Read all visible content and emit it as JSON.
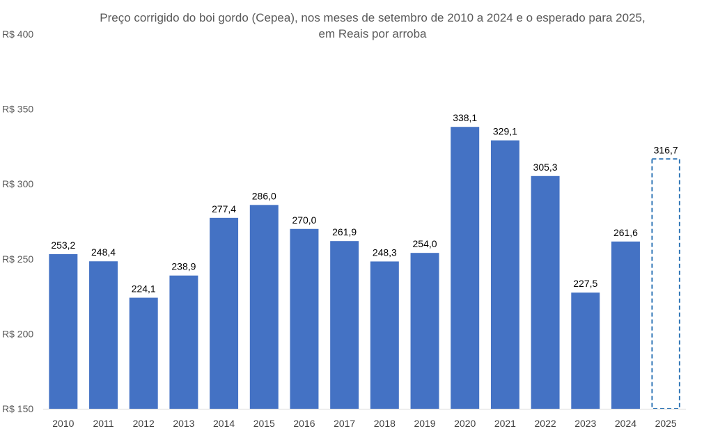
{
  "chart_data": {
    "type": "bar",
    "title_line1": "Preço corrigido do boi gordo (Cepea), nos meses de setembro de 2010 a 2024 e o esperado para 2025,",
    "title_line2": "em Reais por arroba",
    "categories": [
      "2010",
      "2011",
      "2012",
      "2013",
      "2014",
      "2015",
      "2016",
      "2017",
      "2018",
      "2019",
      "2020",
      "2021",
      "2022",
      "2023",
      "2024",
      "2025"
    ],
    "values": [
      253.2,
      248.4,
      224.1,
      238.9,
      277.4,
      286.0,
      270.0,
      261.9,
      248.3,
      254.0,
      338.1,
      329.1,
      305.3,
      227.5,
      261.6,
      316.7
    ],
    "value_labels": [
      "253,2",
      "248,4",
      "224,1",
      "238,9",
      "277,4",
      "286,0",
      "270,0",
      "261,9",
      "248,3",
      "254,0",
      "338,1",
      "329,1",
      "305,3",
      "227,5",
      "261,6",
      "316,7"
    ],
    "projected": [
      false,
      false,
      false,
      false,
      false,
      false,
      false,
      false,
      false,
      false,
      false,
      false,
      false,
      false,
      false,
      true
    ],
    "ylim": [
      150,
      400
    ],
    "yticks": [
      150,
      200,
      250,
      300,
      350,
      400
    ],
    "ytick_labels": [
      "R$ 150",
      "R$ 200",
      "R$ 250",
      "R$ 300",
      "R$ 350",
      "R$ 400"
    ],
    "xlabel": "",
    "ylabel": "",
    "grid": false,
    "legend": "none",
    "colors": {
      "bar": "#4472C4",
      "projected_border": "#2E75B6",
      "axis": "#D9D9D9"
    }
  }
}
